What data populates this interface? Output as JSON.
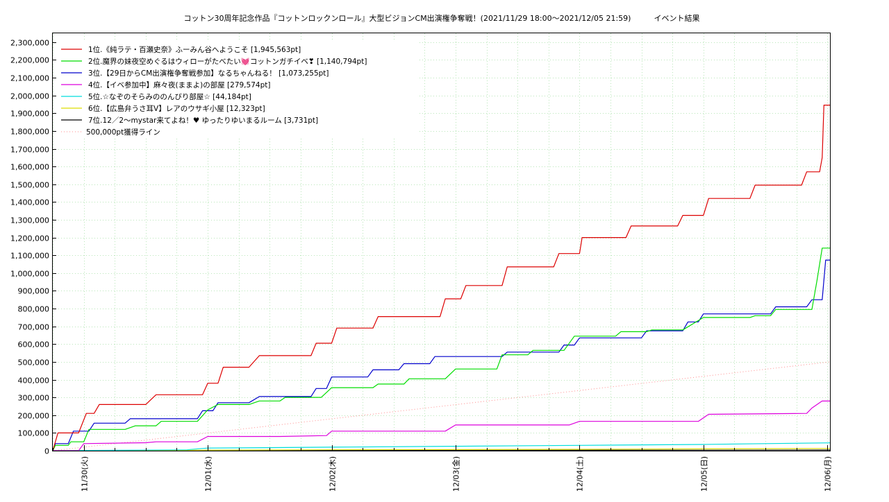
{
  "chart_data": {
    "type": "line",
    "title": "コットン30周年記念作品『コットンロックンロール』大型ビジョンCM出演権争奪戦！(2021/11/29 18:00～2021/12/05 21:59)　　　イベント結果",
    "xlabel": "",
    "ylabel": "",
    "x_range": [
      "2021-11-29 18:00",
      "2021-12-06 00:30"
    ],
    "ylim": [
      0,
      2350000
    ],
    "y_ticks": [
      0,
      100000,
      200000,
      300000,
      400000,
      500000,
      600000,
      700000,
      800000,
      900000,
      1000000,
      1100000,
      1200000,
      1300000,
      1400000,
      1500000,
      1600000,
      1700000,
      1800000,
      1900000,
      2000000,
      2100000,
      2200000,
      2300000
    ],
    "y_tick_labels": [
      "0",
      "100,000",
      "200,000",
      "300,000",
      "400,000",
      "500,000",
      "600,000",
      "700,000",
      "800,000",
      "900,000",
      "1,000,000",
      "1,100,000",
      "1,200,000",
      "1,300,000",
      "1,400,000",
      "1,500,000",
      "1,600,000",
      "1,700,000",
      "1,800,000",
      "1,900,000",
      "2,000,000",
      "2,100,000",
      "2,200,000",
      "2,300,000"
    ],
    "x_ticks": [
      "2021-11-30",
      "2021-12-01",
      "2021-12-02",
      "2021-12-03",
      "2021-12-04",
      "2021-12-05",
      "2021-12-06"
    ],
    "x_tick_labels": [
      "11/30(火)",
      "12/01(水)",
      "12/02(木)",
      "12/03(金)",
      "12/04(土)",
      "12/05(日)",
      "12/06(月)"
    ],
    "grid": true,
    "legend_position": "top-left",
    "series": [
      {
        "name": "1位.《純ラテ・百瀬史奈》ふーみん谷へようこそ [1,945,563pt]",
        "color": "#dd0000",
        "points": [
          [
            "2021-11-29 18:00",
            0
          ],
          [
            "2021-11-29 19:00",
            100000
          ],
          [
            "2021-11-29 23:00",
            100000
          ],
          [
            "2021-11-30 00:30",
            210000
          ],
          [
            "2021-11-30 02:00",
            210000
          ],
          [
            "2021-11-30 03:00",
            260000
          ],
          [
            "2021-11-30 12:00",
            260000
          ],
          [
            "2021-11-30 14:00",
            315000
          ],
          [
            "2021-11-30 20:00",
            315000
          ],
          [
            "2021-11-30 23:00",
            315000
          ],
          [
            "2021-12-01 00:00",
            380000
          ],
          [
            "2021-12-01 02:00",
            380000
          ],
          [
            "2021-12-01 03:00",
            470000
          ],
          [
            "2021-12-01 08:00",
            470000
          ],
          [
            "2021-12-01 10:00",
            535000
          ],
          [
            "2021-12-01 20:00",
            535000
          ],
          [
            "2021-12-01 21:00",
            605000
          ],
          [
            "2021-12-02 00:00",
            605000
          ],
          [
            "2021-12-02 01:00",
            690000
          ],
          [
            "2021-12-02 08:00",
            690000
          ],
          [
            "2021-12-02 09:00",
            755000
          ],
          [
            "2021-12-02 21:00",
            755000
          ],
          [
            "2021-12-02 22:00",
            855000
          ],
          [
            "2021-12-03 01:00",
            855000
          ],
          [
            "2021-12-03 02:00",
            930000
          ],
          [
            "2021-12-03 09:00",
            930000
          ],
          [
            "2021-12-03 10:00",
            1035000
          ],
          [
            "2021-12-03 19:00",
            1035000
          ],
          [
            "2021-12-03 20:00",
            1110000
          ],
          [
            "2021-12-04 00:00",
            1110000
          ],
          [
            "2021-12-04 00:30",
            1200000
          ],
          [
            "2021-12-04 09:00",
            1200000
          ],
          [
            "2021-12-04 10:00",
            1265000
          ],
          [
            "2021-12-04 19:00",
            1265000
          ],
          [
            "2021-12-04 20:00",
            1325000
          ],
          [
            "2021-12-05 00:00",
            1325000
          ],
          [
            "2021-12-05 01:00",
            1420000
          ],
          [
            "2021-12-05 09:00",
            1420000
          ],
          [
            "2021-12-05 10:00",
            1495000
          ],
          [
            "2021-12-05 19:00",
            1495000
          ],
          [
            "2021-12-05 20:00",
            1570000
          ],
          [
            "2021-12-05 22:30",
            1570000
          ],
          [
            "2021-12-05 23:00",
            1650000
          ],
          [
            "2021-12-05 23:20",
            1945563
          ],
          [
            "2021-12-06 00:30",
            1945563
          ]
        ]
      },
      {
        "name": "2位.魔界の妹夜空めぐるはウィローがたべたい💓コットンガチイベ❣ [1,140,794pt]",
        "color": "#00dd00",
        "points": [
          [
            "2021-11-29 18:00",
            0
          ],
          [
            "2021-11-29 18:30",
            30000
          ],
          [
            "2021-11-29 21:00",
            30000
          ],
          [
            "2021-11-29 21:30",
            50000
          ],
          [
            "2021-11-30 00:00",
            50000
          ],
          [
            "2021-11-30 01:00",
            120000
          ],
          [
            "2021-11-30 08:00",
            120000
          ],
          [
            "2021-11-30 10:00",
            140000
          ],
          [
            "2021-11-30 14:00",
            140000
          ],
          [
            "2021-11-30 15:00",
            165000
          ],
          [
            "2021-11-30 22:00",
            165000
          ],
          [
            "2021-12-01 00:00",
            230000
          ],
          [
            "2021-12-01 02:00",
            260000
          ],
          [
            "2021-12-01 08:00",
            260000
          ],
          [
            "2021-12-01 10:00",
            280000
          ],
          [
            "2021-12-01 14:00",
            280000
          ],
          [
            "2021-12-01 15:00",
            300000
          ],
          [
            "2021-12-01 22:00",
            300000
          ],
          [
            "2021-12-02 00:00",
            355000
          ],
          [
            "2021-12-02 08:00",
            355000
          ],
          [
            "2021-12-02 09:00",
            375000
          ],
          [
            "2021-12-02 14:00",
            375000
          ],
          [
            "2021-12-02 15:00",
            405000
          ],
          [
            "2021-12-02 22:00",
            405000
          ],
          [
            "2021-12-03 00:00",
            460000
          ],
          [
            "2021-12-03 08:00",
            460000
          ],
          [
            "2021-12-03 09:00",
            540000
          ],
          [
            "2021-12-03 14:00",
            540000
          ],
          [
            "2021-12-03 15:00",
            565000
          ],
          [
            "2021-12-03 21:00",
            565000
          ],
          [
            "2021-12-03 23:00",
            645000
          ],
          [
            "2021-12-04 07:00",
            645000
          ],
          [
            "2021-12-04 08:00",
            670000
          ],
          [
            "2021-12-04 13:00",
            670000
          ],
          [
            "2021-12-04 14:00",
            680000
          ],
          [
            "2021-12-04 20:00",
            680000
          ],
          [
            "2021-12-05 00:00",
            750000
          ],
          [
            "2021-12-05 09:00",
            750000
          ],
          [
            "2021-12-05 10:00",
            760000
          ],
          [
            "2021-12-05 13:00",
            760000
          ],
          [
            "2021-12-05 14:00",
            795000
          ],
          [
            "2021-12-05 21:00",
            795000
          ],
          [
            "2021-12-05 22:00",
            960000
          ],
          [
            "2021-12-05 23:00",
            1140794
          ],
          [
            "2021-12-06 00:30",
            1140794
          ]
        ]
      },
      {
        "name": "3位.【29日からCM出演権争奪戦参加】なるちゃんねる！ [1,073,255pt]",
        "color": "#0000cc",
        "points": [
          [
            "2021-11-29 18:00",
            0
          ],
          [
            "2021-11-29 18:30",
            40000
          ],
          [
            "2021-11-29 21:00",
            40000
          ],
          [
            "2021-11-29 22:00",
            110000
          ],
          [
            "2021-11-30 01:00",
            110000
          ],
          [
            "2021-11-30 02:00",
            155000
          ],
          [
            "2021-11-30 08:00",
            155000
          ],
          [
            "2021-11-30 09:00",
            180000
          ],
          [
            "2021-11-30 22:00",
            180000
          ],
          [
            "2021-11-30 23:00",
            225000
          ],
          [
            "2021-12-01 01:00",
            225000
          ],
          [
            "2021-12-01 02:00",
            270000
          ],
          [
            "2021-12-01 08:00",
            270000
          ],
          [
            "2021-12-01 10:00",
            305000
          ],
          [
            "2021-12-01 20:00",
            305000
          ],
          [
            "2021-12-01 21:00",
            350000
          ],
          [
            "2021-12-01 23:00",
            350000
          ],
          [
            "2021-12-02 00:00",
            415000
          ],
          [
            "2021-12-02 07:00",
            415000
          ],
          [
            "2021-12-02 08:00",
            455000
          ],
          [
            "2021-12-02 13:00",
            455000
          ],
          [
            "2021-12-02 14:00",
            490000
          ],
          [
            "2021-12-02 19:00",
            490000
          ],
          [
            "2021-12-02 20:00",
            530000
          ],
          [
            "2021-12-03 09:00",
            530000
          ],
          [
            "2021-12-03 10:00",
            555000
          ],
          [
            "2021-12-03 20:00",
            555000
          ],
          [
            "2021-12-03 21:00",
            595000
          ],
          [
            "2021-12-03 23:00",
            595000
          ],
          [
            "2021-12-04 00:00",
            635000
          ],
          [
            "2021-12-04 12:00",
            635000
          ],
          [
            "2021-12-04 13:00",
            675000
          ],
          [
            "2021-12-04 20:00",
            675000
          ],
          [
            "2021-12-04 21:00",
            725000
          ],
          [
            "2021-12-04 23:00",
            725000
          ],
          [
            "2021-12-05 00:00",
            770000
          ],
          [
            "2021-12-05 13:00",
            770000
          ],
          [
            "2021-12-05 14:00",
            810000
          ],
          [
            "2021-12-05 20:00",
            810000
          ],
          [
            "2021-12-05 21:00",
            850000
          ],
          [
            "2021-12-05 23:00",
            850000
          ],
          [
            "2021-12-05 23:40",
            1073255
          ],
          [
            "2021-12-06 00:30",
            1073255
          ]
        ]
      },
      {
        "name": "4位.【イベ参加中】麻々夜(ままよ)の部屋 [279,574pt]",
        "color": "#dd00dd",
        "points": [
          [
            "2021-11-29 18:00",
            0
          ],
          [
            "2021-11-29 23:00",
            0
          ],
          [
            "2021-11-30 00:00",
            40000
          ],
          [
            "2021-11-30 12:00",
            45000
          ],
          [
            "2021-11-30 14:00",
            50000
          ],
          [
            "2021-11-30 22:00",
            50000
          ],
          [
            "2021-12-01 00:00",
            80000
          ],
          [
            "2021-12-01 14:00",
            80000
          ],
          [
            "2021-12-01 23:00",
            85000
          ],
          [
            "2021-12-02 00:00",
            110000
          ],
          [
            "2021-12-02 22:00",
            110000
          ],
          [
            "2021-12-03 00:00",
            145000
          ],
          [
            "2021-12-03 22:00",
            145000
          ],
          [
            "2021-12-04 00:00",
            165000
          ],
          [
            "2021-12-04 23:00",
            165000
          ],
          [
            "2021-12-05 01:00",
            205000
          ],
          [
            "2021-12-05 20:00",
            210000
          ],
          [
            "2021-12-05 21:00",
            240000
          ],
          [
            "2021-12-05 23:00",
            280000
          ],
          [
            "2021-12-06 00:30",
            279574
          ]
        ]
      },
      {
        "name": "5位.☆なぞのそらみののんびり部屋☆ [44,184pt]",
        "color": "#00dddd",
        "points": [
          [
            "2021-11-29 18:00",
            0
          ],
          [
            "2021-11-30 20:00",
            5000
          ],
          [
            "2021-12-01 00:00",
            15000
          ],
          [
            "2021-12-02 00:00",
            20000
          ],
          [
            "2021-12-03 00:00",
            25000
          ],
          [
            "2021-12-04 00:00",
            30000
          ],
          [
            "2021-12-05 00:00",
            35000
          ],
          [
            "2021-12-05 12:00",
            40000
          ],
          [
            "2021-12-06 00:30",
            44184
          ]
        ]
      },
      {
        "name": "6位.【広島弁うさ耳V】レアのウサギ小屋 [12,323pt]",
        "color": "#dddd00",
        "points": [
          [
            "2021-11-29 18:00",
            0
          ],
          [
            "2021-11-30 12:00",
            2000
          ],
          [
            "2021-12-02 00:00",
            5000
          ],
          [
            "2021-12-04 00:00",
            8000
          ],
          [
            "2021-12-06 00:30",
            12323
          ]
        ]
      },
      {
        "name": "7位.12／2〜mystar来てよね！♥ ゆったりゆいまるルーム [3,731pt]",
        "color": "#000000",
        "points": [
          [
            "2021-11-29 18:00",
            0
          ],
          [
            "2021-11-30 06:00",
            1000
          ],
          [
            "2021-12-03 00:00",
            2000
          ],
          [
            "2021-12-06 00:30",
            3731
          ]
        ]
      }
    ],
    "reference_line": {
      "name": "500,000pt獲得ライン",
      "color": "#ff8c8c",
      "style": "dotted",
      "points": [
        [
          "2021-11-29 18:00",
          0
        ],
        [
          "2021-12-06 00:30",
          500000
        ]
      ]
    }
  }
}
